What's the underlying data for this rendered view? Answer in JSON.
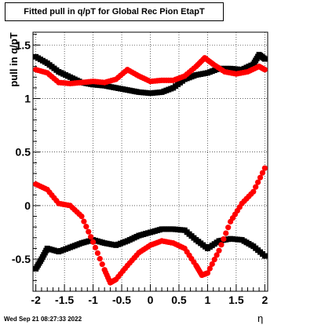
{
  "chart_data": {
    "type": "scatter",
    "title": "Fitted pull in q/pT for Global Rec Pion EtapT",
    "xlabel": "η",
    "ylabel": "pull in q/pT",
    "xlim": [
      -2.05,
      2.05
    ],
    "ylim": [
      -0.8,
      1.62
    ],
    "grid": true,
    "x_ticks": [
      "-2",
      "-1.5",
      "-1",
      "-0.5",
      "0",
      "0.5",
      "1",
      "1.5",
      "2"
    ],
    "x_tick_values": [
      -2,
      -1.5,
      -1,
      -0.5,
      0,
      0.5,
      1,
      1.5,
      2
    ],
    "y_ticks": [
      "-0.5",
      "0",
      "0.5",
      "1",
      "1.5"
    ],
    "y_tick_values": [
      -0.5,
      0,
      0.5,
      1,
      1.5
    ],
    "series": [
      {
        "color": "#000000",
        "x": [
          -2.0,
          -1.8,
          -1.6,
          -1.4,
          -1.2,
          -1.0,
          -0.8,
          -0.6,
          -0.4,
          -0.2,
          0.0,
          0.2,
          0.4,
          0.6,
          0.8,
          1.0,
          1.2,
          1.4,
          1.6,
          1.8,
          1.9,
          2.0
        ],
        "y": [
          1.39,
          1.33,
          1.25,
          1.2,
          1.15,
          1.13,
          1.12,
          1.1,
          1.08,
          1.06,
          1.05,
          1.06,
          1.1,
          1.18,
          1.22,
          1.24,
          1.28,
          1.28,
          1.27,
          1.32,
          1.41,
          1.37
        ]
      },
      {
        "color": "#ff0000",
        "x": [
          -2.0,
          -1.8,
          -1.6,
          -1.4,
          -1.2,
          -1.0,
          -0.8,
          -0.6,
          -0.4,
          -0.2,
          0.0,
          0.2,
          0.4,
          0.6,
          0.8,
          0.95,
          1.1,
          1.3,
          1.5,
          1.7,
          1.9,
          2.0
        ],
        "y": [
          1.27,
          1.24,
          1.15,
          1.14,
          1.15,
          1.16,
          1.15,
          1.18,
          1.27,
          1.21,
          1.16,
          1.17,
          1.17,
          1.21,
          1.3,
          1.38,
          1.32,
          1.25,
          1.23,
          1.25,
          1.3,
          1.27
        ]
      },
      {
        "color": "#000000",
        "x": [
          -2.0,
          -1.9,
          -1.8,
          -1.6,
          -1.4,
          -1.2,
          -1.0,
          -0.8,
          -0.6,
          -0.4,
          -0.2,
          0.0,
          0.2,
          0.4,
          0.6,
          0.8,
          1.0,
          1.2,
          1.4,
          1.6,
          1.8,
          2.0
        ],
        "y": [
          -0.59,
          -0.5,
          -0.4,
          -0.43,
          -0.39,
          -0.35,
          -0.32,
          -0.35,
          -0.37,
          -0.33,
          -0.28,
          -0.25,
          -0.22,
          -0.22,
          -0.23,
          -0.32,
          -0.4,
          -0.33,
          -0.31,
          -0.32,
          -0.38,
          -0.47
        ]
      },
      {
        "color": "#ff0000",
        "x": [
          -2.0,
          -1.8,
          -1.6,
          -1.4,
          -1.2,
          -1.0,
          -0.8,
          -0.7,
          -0.6,
          -0.4,
          -0.2,
          0.0,
          0.2,
          0.4,
          0.6,
          0.8,
          0.9,
          1.0,
          1.2,
          1.4,
          1.6,
          1.8,
          2.0
        ],
        "y": [
          0.2,
          0.15,
          0.02,
          0.0,
          -0.1,
          -0.34,
          -0.6,
          -0.72,
          -0.69,
          -0.56,
          -0.44,
          -0.37,
          -0.33,
          -0.35,
          -0.4,
          -0.56,
          -0.65,
          -0.63,
          -0.42,
          -0.15,
          0.02,
          0.13,
          0.35
        ]
      }
    ]
  },
  "footer": {
    "date": "Wed Sep 21 08:27:33 2022"
  }
}
